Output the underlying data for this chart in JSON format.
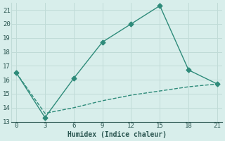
{
  "line1_x": [
    0,
    3,
    6,
    9,
    12,
    15,
    18,
    21
  ],
  "line1_y": [
    16.5,
    13.3,
    16.1,
    18.7,
    20.0,
    21.3,
    16.7,
    15.7
  ],
  "line2_x": [
    0,
    3,
    6,
    9,
    12,
    15,
    18,
    21
  ],
  "line2_y": [
    16.5,
    13.6,
    14.0,
    14.5,
    14.9,
    15.2,
    15.5,
    15.7
  ],
  "line_color": "#2e8b7a",
  "bg_color": "#d8eeeb",
  "grid_color": "#c0dbd7",
  "xlabel": "Humidex (Indice chaleur)",
  "xlim": [
    -0.5,
    21.5
  ],
  "ylim": [
    13,
    21.5
  ],
  "xticks": [
    0,
    3,
    6,
    9,
    12,
    15,
    18,
    21
  ],
  "yticks": [
    13,
    14,
    15,
    16,
    17,
    18,
    19,
    20,
    21
  ],
  "font_color": "#2a5550",
  "marker": "D",
  "markersize": 3.5,
  "linewidth": 1.0
}
